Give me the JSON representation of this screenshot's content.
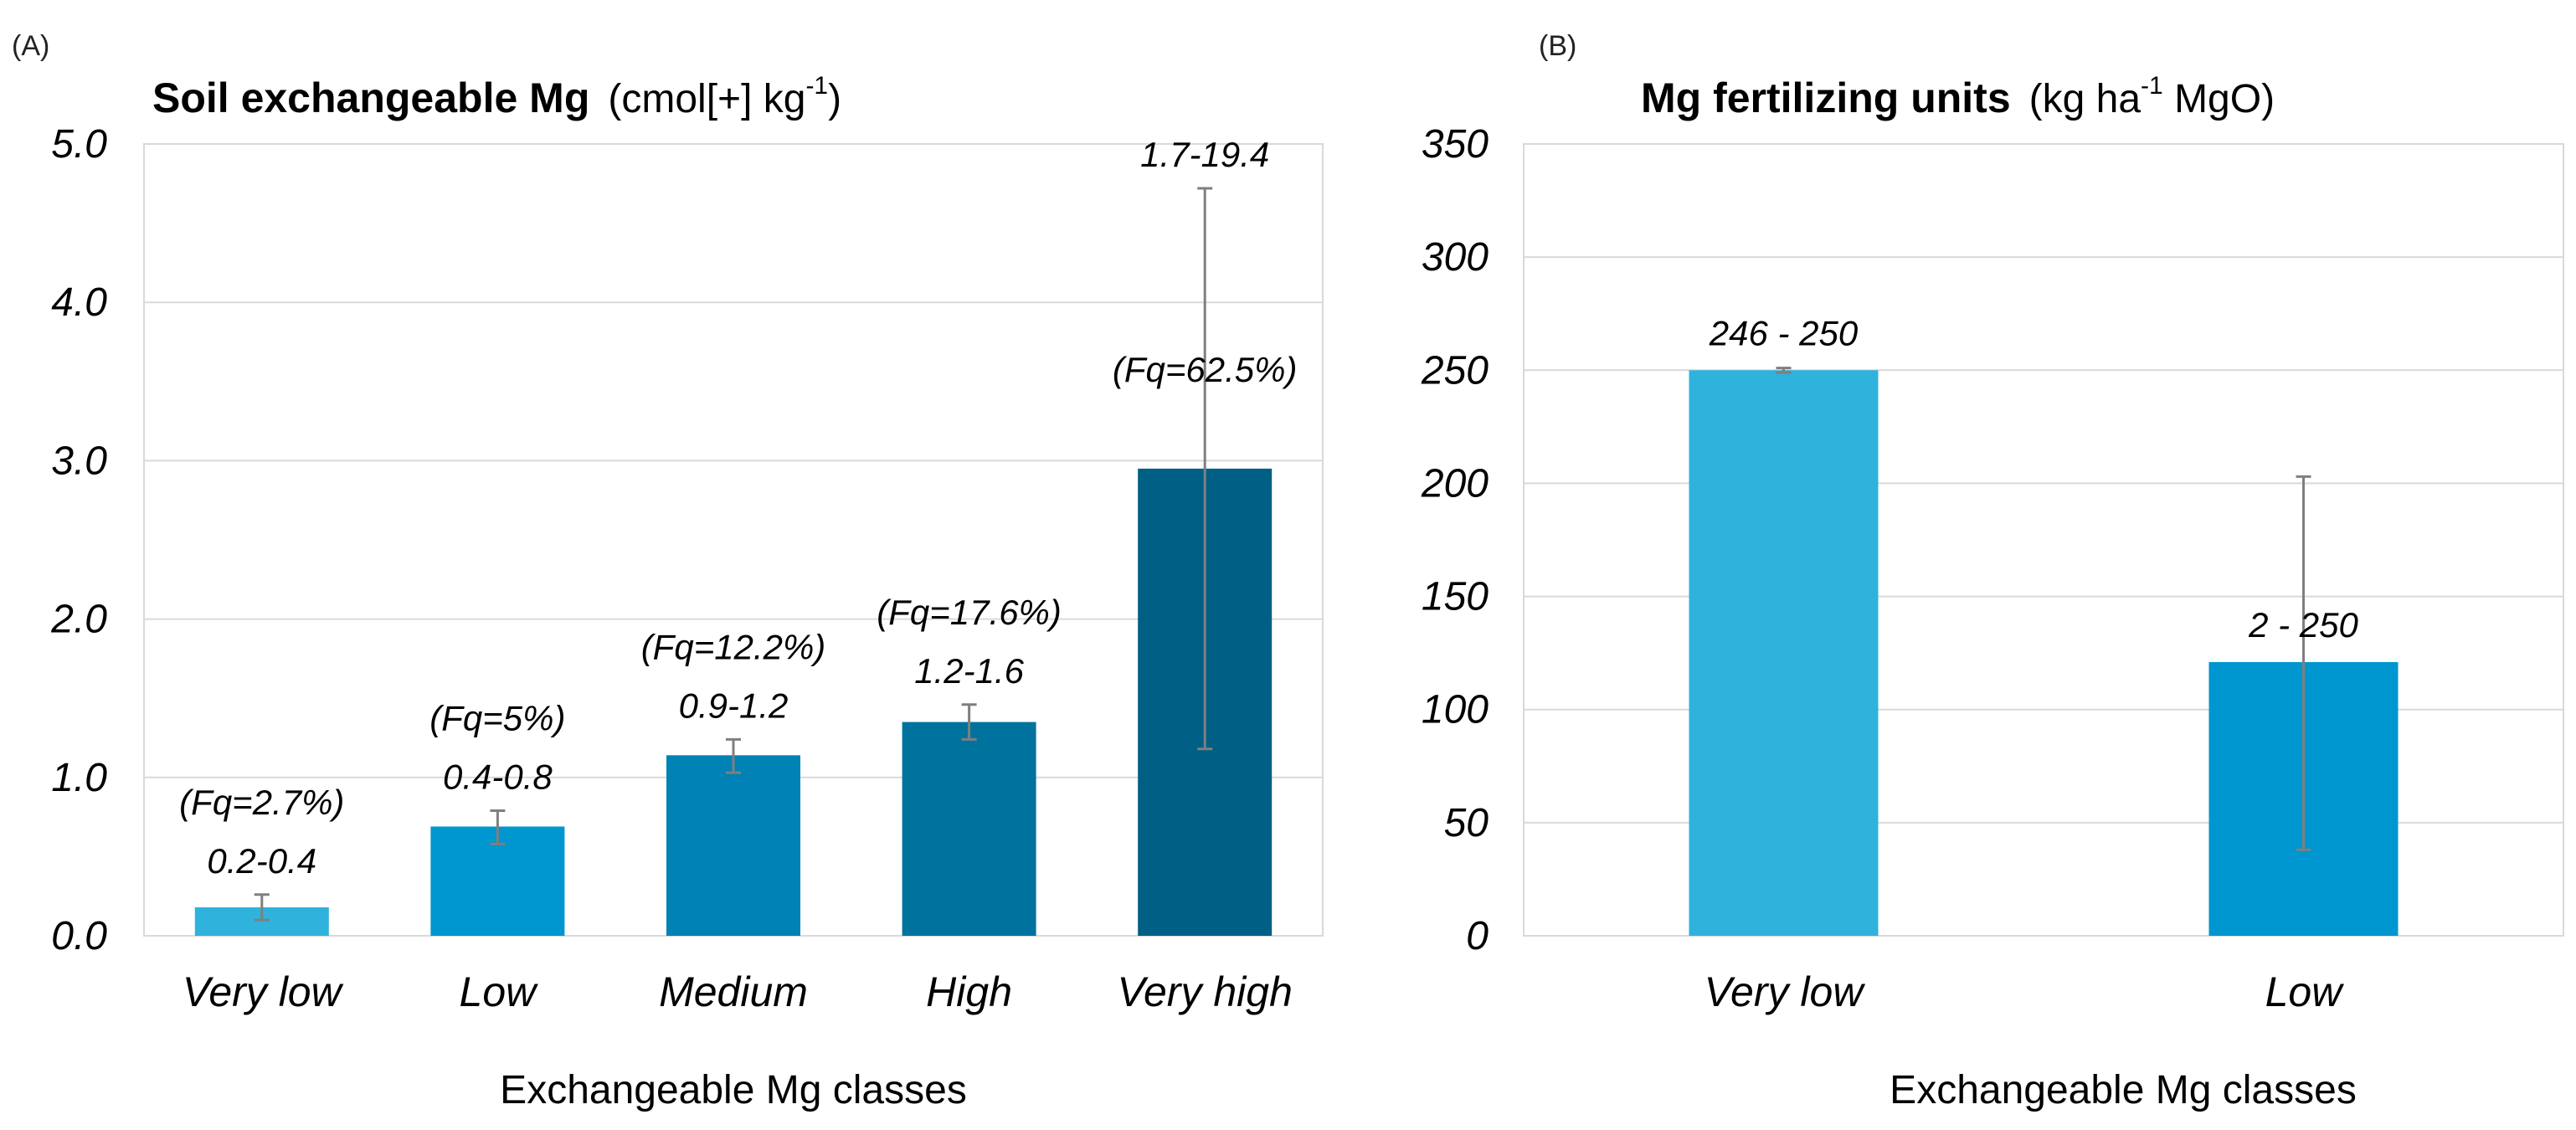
{
  "chart_data": [
    {
      "panel": "(A)",
      "type": "bar",
      "title": "Soil exchangeable Mg",
      "title_unit_pre": "(cmol[+]  kg",
      "title_unit_sup": "-1",
      "title_unit_post": ")",
      "xlabel": "Exchangeable Mg classes",
      "ylim": [
        0,
        5
      ],
      "yticks": [
        "0.0",
        "1.0",
        "2.0",
        "3.0",
        "4.0",
        "5.0"
      ],
      "categories": [
        "Very low",
        "Low",
        "Medium",
        "High",
        "Very high"
      ],
      "values": [
        0.18,
        0.69,
        1.14,
        1.35,
        2.95
      ],
      "err_low": [
        0.1,
        0.58,
        1.03,
        1.24,
        1.18
      ],
      "err_high": [
        0.26,
        0.79,
        1.24,
        1.46,
        4.72
      ],
      "range_labels": [
        "0.2-0.4",
        "0.4-0.8",
        "0.9-1.2",
        "1.2-1.6",
        "1.7-19.4"
      ],
      "freq_labels": [
        "(Fq=2.7%)",
        "(Fq=5%)",
        "(Fq=12.2%)",
        "(Fq=17.6%)",
        "(Fq=62.5%)"
      ],
      "colors": [
        "#2fb2dc",
        "#0096cf",
        "#0082b4",
        "#00729e",
        "#005f84"
      ]
    },
    {
      "panel": "(B)",
      "type": "bar",
      "title": "Mg fertilizing units",
      "title_unit_pre": "(kg ha",
      "title_unit_sup": "-1",
      "title_unit_post": " MgO)",
      "xlabel": "Exchangeable Mg classes",
      "ylim": [
        0,
        350
      ],
      "yticks": [
        "0",
        "50",
        "100",
        "150",
        "200",
        "250",
        "300",
        "350"
      ],
      "categories": [
        "Very low",
        "Low"
      ],
      "values": [
        250,
        121
      ],
      "err_low": [
        249,
        38
      ],
      "err_high": [
        251,
        203
      ],
      "range_labels": [
        "246 - 250",
        "2 - 250"
      ],
      "colors": [
        "#2fb2dc",
        "#0096cf"
      ]
    }
  ]
}
